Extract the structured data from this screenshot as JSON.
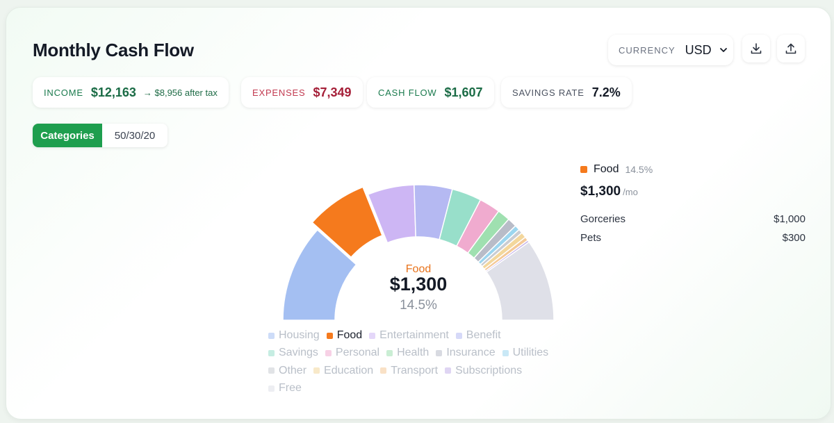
{
  "header": {
    "title": "Monthly Cash Flow",
    "currency_label": "CURRENCY",
    "currency_value": "USD",
    "download_icon": "download-icon",
    "share_icon": "upload-icon"
  },
  "stats": {
    "income_label": "INCOME",
    "income_value": "$12,163",
    "income_after_tax": "→ $8,956 after tax",
    "expenses_label": "EXPENSES",
    "expenses_value": "$7,349",
    "cashflow_label": "CASH FLOW",
    "cashflow_value": "$1,607",
    "savings_label": "SAVINGS RATE",
    "savings_value": "7.2%"
  },
  "view_toggle": {
    "options": [
      "Categories",
      "50/30/20"
    ],
    "selected": "Categories"
  },
  "chart_data": {
    "type": "pie",
    "style": "semi-donut",
    "categories": [
      "Housing",
      "Food",
      "Entertainment",
      "Benefit",
      "Savings",
      "Personal",
      "Health",
      "Insurance",
      "Utilities",
      "Other",
      "Education",
      "Transport",
      "Subscriptions",
      "Free"
    ],
    "values": [
      23.0,
      14.5,
      11.0,
      9.0,
      7.0,
      5.0,
      3.0,
      2.2,
      1.2,
      1.0,
      1.3,
      0.9,
      0.5,
      19.4
    ],
    "colors": [
      "#a4bff2",
      "#f57a1d",
      "#cdb6f4",
      "#b5b9f2",
      "#98dfca",
      "#f0abcf",
      "#9fe0b0",
      "#b8bcc8",
      "#9cd6ef",
      "#c9ccd2",
      "#f3d79c",
      "#f4c998",
      "#c4b2ea",
      "#dfe0e8"
    ],
    "highlighted": "Food",
    "center": {
      "label": "Food",
      "value": "$1,300",
      "percent": "14.5%"
    },
    "legend_rows": [
      [
        "Housing",
        "Food",
        "Entertainment",
        "Benefit"
      ],
      [
        "Savings",
        "Personal",
        "Health",
        "Insurance",
        "Utilities"
      ],
      [
        "Other",
        "Education",
        "Transport",
        "Subscriptions"
      ],
      [
        "Free"
      ]
    ]
  },
  "detail": {
    "name": "Food",
    "percent": "14.5%",
    "amount": "$1,300",
    "per": "/mo",
    "color": "#f57a1d",
    "lines": [
      {
        "label": "Gorceries",
        "value": "$1,000"
      },
      {
        "label": "Pets",
        "value": "$300"
      }
    ]
  },
  "colors": {
    "income": "#1a7a4d",
    "expenses": "#b0243b",
    "cashflow": "#1a7a4d",
    "savings": "#141a26",
    "accent": "#1e9e4e"
  }
}
